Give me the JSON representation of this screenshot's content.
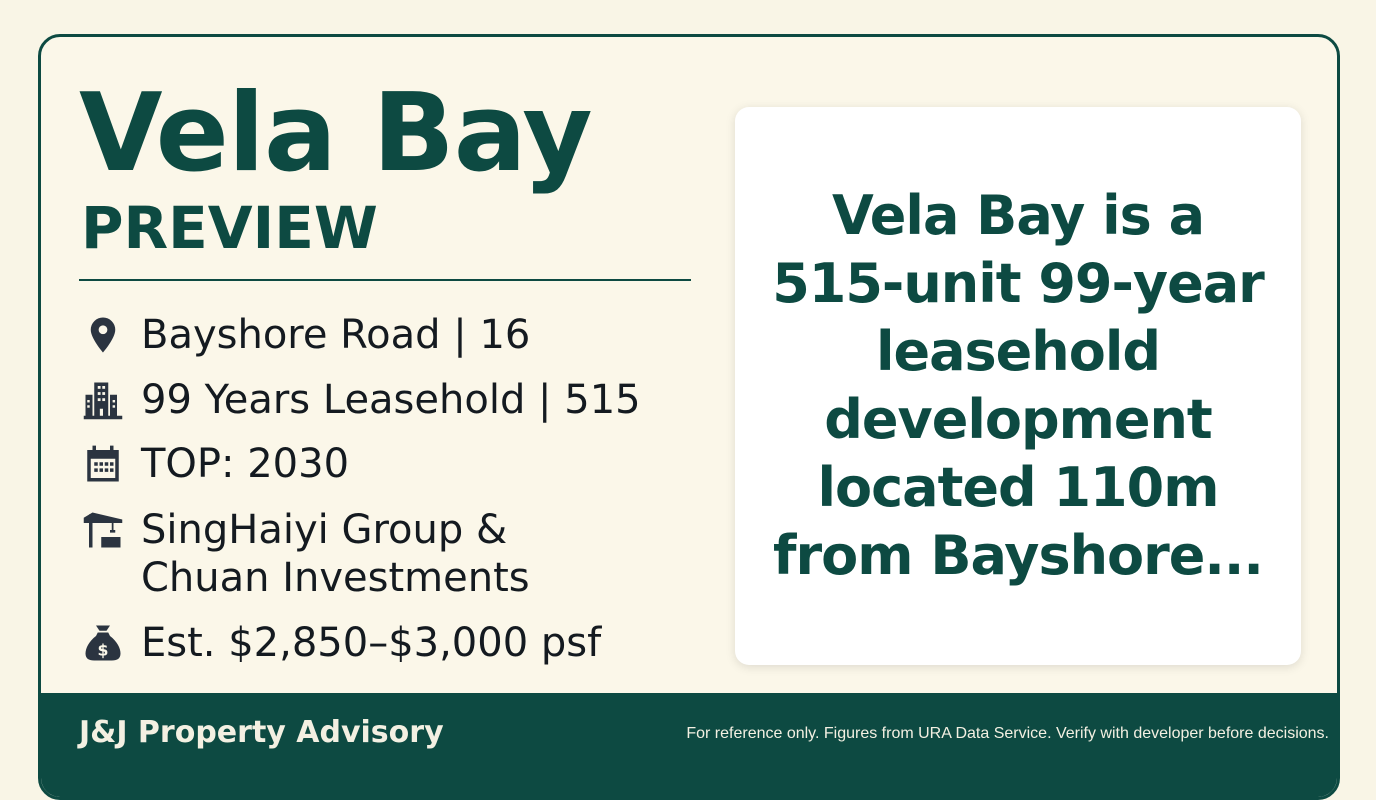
{
  "header": {
    "title": "Vela Bay",
    "subtitle": "PREVIEW"
  },
  "details": [
    {
      "icon": "map-pin-icon",
      "text": "Bayshore Road | 16"
    },
    {
      "icon": "building-icon",
      "text": "99 Years Leasehold | 515"
    },
    {
      "icon": "calendar-icon",
      "text": "TOP: 2030"
    },
    {
      "icon": "crane-icon",
      "text": "SingHaiyi Group & Chuan Investments"
    },
    {
      "icon": "money-bag-icon",
      "text": "Est. $2,850–$3,000 psf"
    }
  ],
  "summary": "Vela Bay is a 515-unit 99-year leasehold development located 110m from Bayshore...",
  "footer": {
    "brand": "J&J Property Advisory",
    "disclaimer": "For reference only. Figures from URA Data Service. Verify with developer before decisions."
  },
  "colors": {
    "primary": "#0d4a42",
    "background": "#f9f5e6",
    "icon": "#2b3440"
  }
}
